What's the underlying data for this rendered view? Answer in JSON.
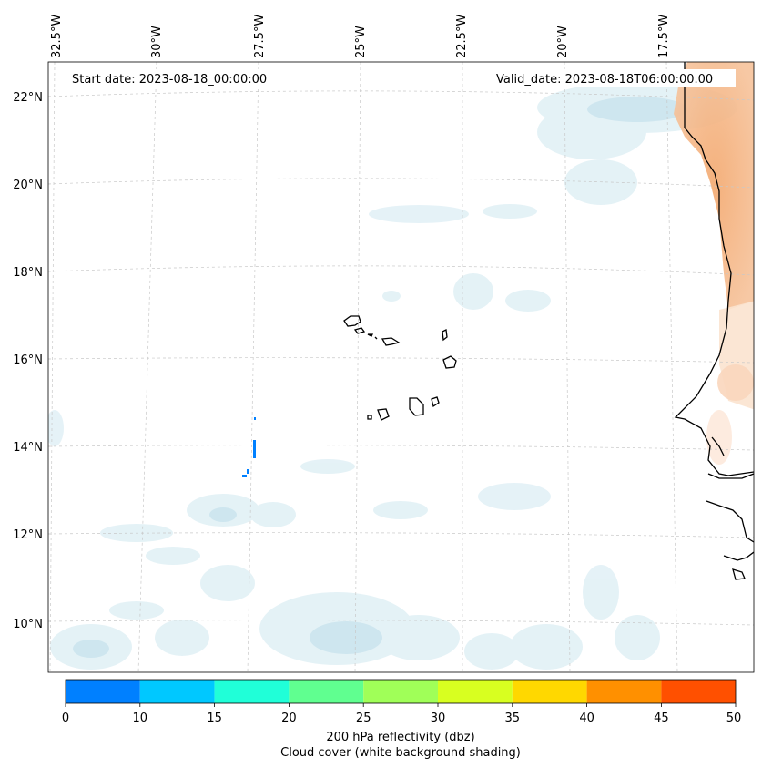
{
  "map": {
    "annotations": {
      "start_date": "Start date: 2023-08-18_00:00:00",
      "valid_date": "Valid_date: 2023-08-18T06:00:00.00"
    },
    "lon_labels": [
      "32.5°W",
      "30°W",
      "27.5°W",
      "25°W",
      "22.5°W",
      "20°W",
      "17.5°W"
    ],
    "lat_labels": [
      "22°N",
      "20°N",
      "18°N",
      "16°N",
      "14°N",
      "12°N",
      "10°N"
    ],
    "extent": {
      "lon_min": "32.5°W",
      "lon_max": "15.5°W",
      "lat_min": "9°N",
      "lat_max": "22.8°N"
    },
    "gridlines": "dashed",
    "features": [
      "Cape Verde islands",
      "West African coastline",
      "cloud cover shading",
      "reflectivity shading"
    ]
  },
  "colorbar": {
    "ticks": [
      "0",
      "10",
      "15",
      "20",
      "25",
      "30",
      "35",
      "40",
      "45",
      "50"
    ],
    "colors": [
      "#0080ff",
      "#00c8ff",
      "#20ffd8",
      "#60ff90",
      "#a0ff58",
      "#d8ff20",
      "#ffd800",
      "#ff9000",
      "#ff5000"
    ],
    "label_line1": "200 hPa reflectivity (dbz)",
    "label_line2": "Cloud cover (white background shading)"
  }
}
